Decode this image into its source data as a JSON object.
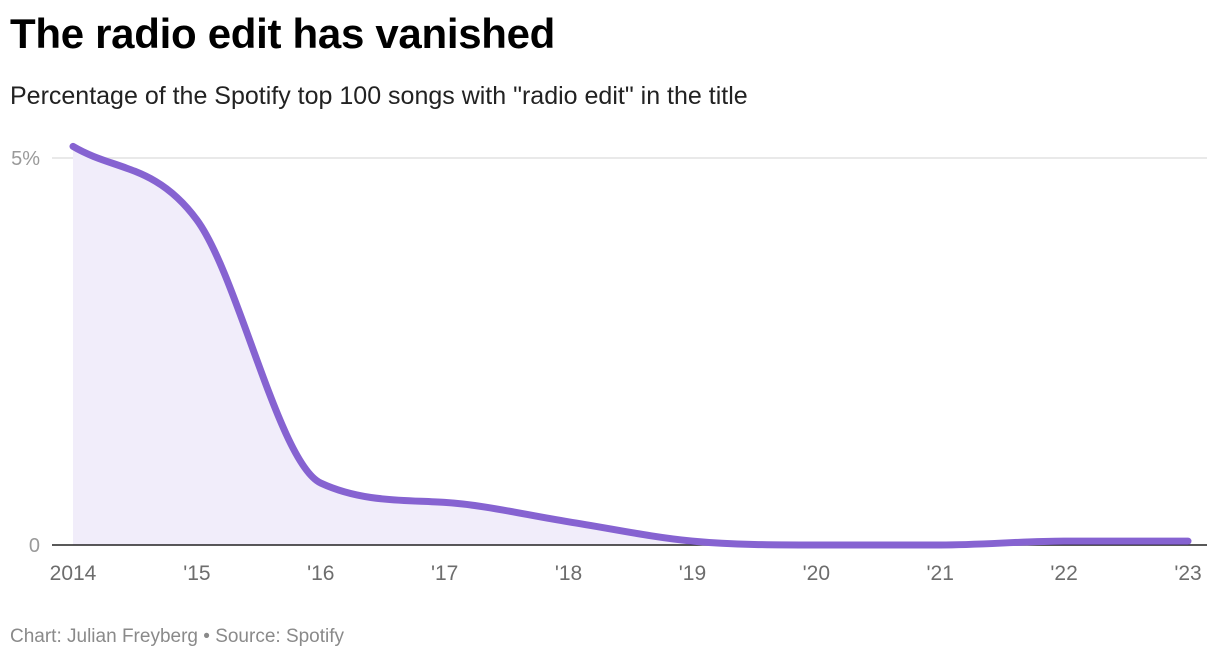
{
  "header": {
    "title": "The radio edit has vanished",
    "subtitle": "Percentage of the Spotify top 100 songs with \"radio edit\" in the title"
  },
  "footer": {
    "credit": "Chart: Julian Freyberg",
    "separator": "•",
    "source": "Source: Spotify"
  },
  "colors": {
    "line": "#8663d1",
    "area": "#f1edfa",
    "gridline": "#e2e2e2",
    "baseline": "#222222"
  },
  "chart_data": {
    "type": "area",
    "title": "The radio edit has vanished",
    "subtitle": "Percentage of the Spotify top 100 songs with \"radio edit\" in the title",
    "x": [
      2014,
      2015,
      2016,
      2017,
      2018,
      2019,
      2020,
      2021,
      2022,
      2023
    ],
    "x_tick_labels": [
      "2014",
      "'15",
      "'16",
      "'17",
      "'18",
      "'19",
      "'20",
      "'21",
      "'22",
      "'23"
    ],
    "series": [
      {
        "values": [
          5.15,
          4.2,
          0.8,
          0.55,
          0.3,
          0.05,
          0.0,
          0.0,
          0.05,
          0.05
        ]
      }
    ],
    "y_ticks": [
      0,
      5
    ],
    "y_tick_labels": [
      "0",
      "5%"
    ],
    "ylim": [
      0,
      5
    ],
    "grid": true,
    "unit": "%"
  }
}
